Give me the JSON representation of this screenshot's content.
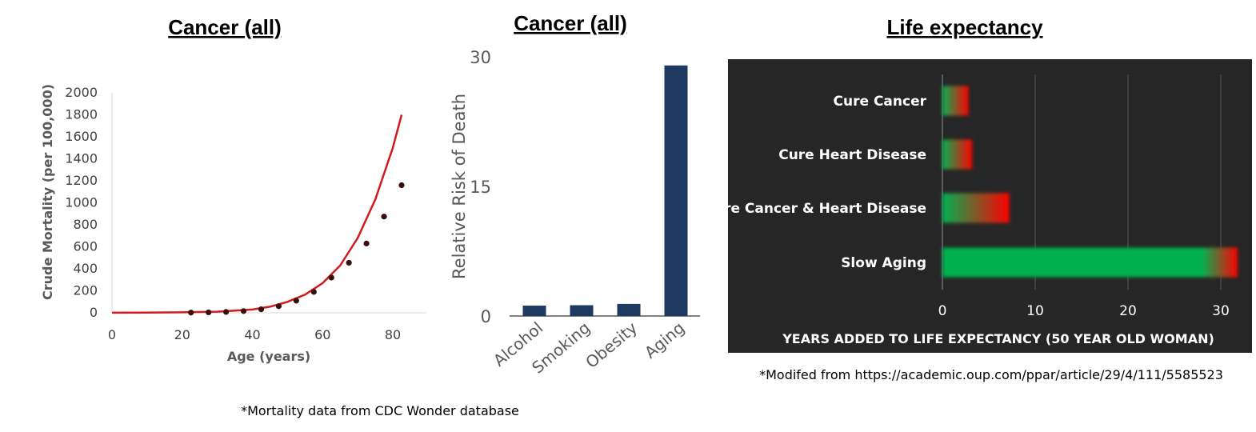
{
  "chart_data": [
    {
      "type": "scatter",
      "title": "Cancer (all)",
      "xlabel": "Age (years)",
      "ylabel": "Crude Mortality (per 100,000)",
      "xlim": [
        0,
        90
      ],
      "ylim": [
        0,
        2000
      ],
      "x_ticks": [
        "0",
        "20",
        "40",
        "60",
        "80"
      ],
      "y_ticks": [
        "0",
        "200",
        "400",
        "600",
        "800",
        "1000",
        "1200",
        "1400",
        "1600",
        "1800",
        "2000"
      ],
      "grid": false,
      "points": [
        {
          "x": 22.5,
          "y": 2
        },
        {
          "x": 27.5,
          "y": 4
        },
        {
          "x": 32.5,
          "y": 8
        },
        {
          "x": 37.5,
          "y": 16
        },
        {
          "x": 42.5,
          "y": 32
        },
        {
          "x": 47.5,
          "y": 60
        },
        {
          "x": 52.5,
          "y": 110
        },
        {
          "x": 57.5,
          "y": 190
        },
        {
          "x": 62.5,
          "y": 320
        },
        {
          "x": 67.5,
          "y": 455
        },
        {
          "x": 72.5,
          "y": 630
        },
        {
          "x": 77.5,
          "y": 875
        },
        {
          "x": 82.5,
          "y": 1160
        }
      ],
      "fit_curve": {
        "x": [
          0,
          10,
          20,
          30,
          40,
          45,
          50,
          55,
          60,
          65,
          70,
          75,
          80,
          82.5
        ],
        "y": [
          1,
          2,
          4,
          10,
          30,
          55,
          100,
          165,
          270,
          430,
          680,
          1030,
          1500,
          1800
        ]
      },
      "colors": {
        "points": "#3a0d0d",
        "curve": "#d4191c"
      },
      "note": "*Mortality data from CDC Wonder database"
    },
    {
      "type": "bar",
      "title": "Cancer (all)",
      "ylabel": "Relative Risk of Death",
      "categories": [
        "Alcohol",
        "Smoking",
        "Obesity",
        "Aging"
      ],
      "values": [
        1.2,
        1.25,
        1.4,
        29
      ],
      "ylim": [
        0,
        30
      ],
      "y_ticks": [
        "0",
        "15",
        "30"
      ],
      "grid": false,
      "colors": {
        "bar": "#1f3a60"
      }
    },
    {
      "type": "bar",
      "orientation": "horizontal",
      "title": "Life expectancy",
      "xlabel": "YEARS ADDED TO LIFE EXPECTANCY (50 YEAR OLD WOMAN)",
      "categories": [
        "Cure Cancer",
        "Cure Heart Disease",
        "Cure Cancer & Heart Disease",
        "Slow Aging"
      ],
      "values": [
        2.8,
        3.2,
        7.2,
        31.8
      ],
      "xlim": [
        0,
        35
      ],
      "x_ticks": [
        "0",
        "10",
        "20",
        "30"
      ],
      "grid": true,
      "colors": {
        "background": "#262626",
        "gradient_start": "#00b050",
        "gradient_end": "#ff0000",
        "grid": "#595959"
      },
      "note": "*Modifed from https://academic.oup.com/ppar/article/29/4/111/5585523"
    }
  ]
}
